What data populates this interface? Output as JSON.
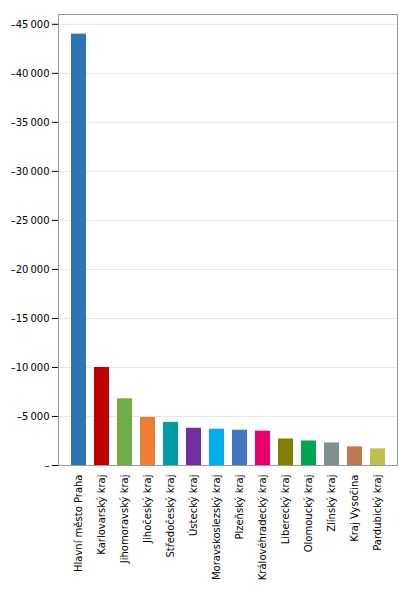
{
  "chart_data": {
    "type": "bar",
    "categories": [
      "Hlavní město Praha",
      "Karlovarský kraj",
      "Jihomoravský kraj",
      "Jihočeský kraj",
      "Středočeský kraj",
      "Ústecký kraj",
      "Moravskoslezský kraj",
      "Plzeňský kraj",
      "Královéhradecký kraj",
      "Liberecký kraj",
      "Olomoucký kraj",
      "Zlínský kraj",
      "Kraj Vysočina",
      "Pardubický kraj"
    ],
    "values": [
      -44000,
      -10000,
      -6800,
      -4900,
      -4400,
      -3800,
      -3700,
      -3600,
      -3500,
      -2700,
      -2500,
      -2300,
      -1900,
      -1700
    ],
    "colors": [
      "#2E75B6",
      "#C00000",
      "#70AD47",
      "#ED7D31",
      "#009BA5",
      "#7030A0",
      "#00ADEF",
      "#4472C4",
      "#E8006A",
      "#7F7F00",
      "#00A550",
      "#7F9090",
      "#C07850",
      "#BFBF50"
    ],
    "ylim": [
      0,
      -46000
    ],
    "yticks": [
      {
        "value": 0,
        "label": "–"
      },
      {
        "value": -5000,
        "label": "–5 000"
      },
      {
        "value": -10000,
        "label": "–10 000"
      },
      {
        "value": -15000,
        "label": "–15 000"
      },
      {
        "value": -20000,
        "label": "–20 000"
      },
      {
        "value": -25000,
        "label": "–25 000"
      },
      {
        "value": -30000,
        "label": "–30 000"
      },
      {
        "value": -35000,
        "label": "–35 000"
      },
      {
        "value": -40000,
        "label": "–40 000"
      },
      {
        "value": -45000,
        "label": "–45 000"
      }
    ],
    "grid": true
  }
}
